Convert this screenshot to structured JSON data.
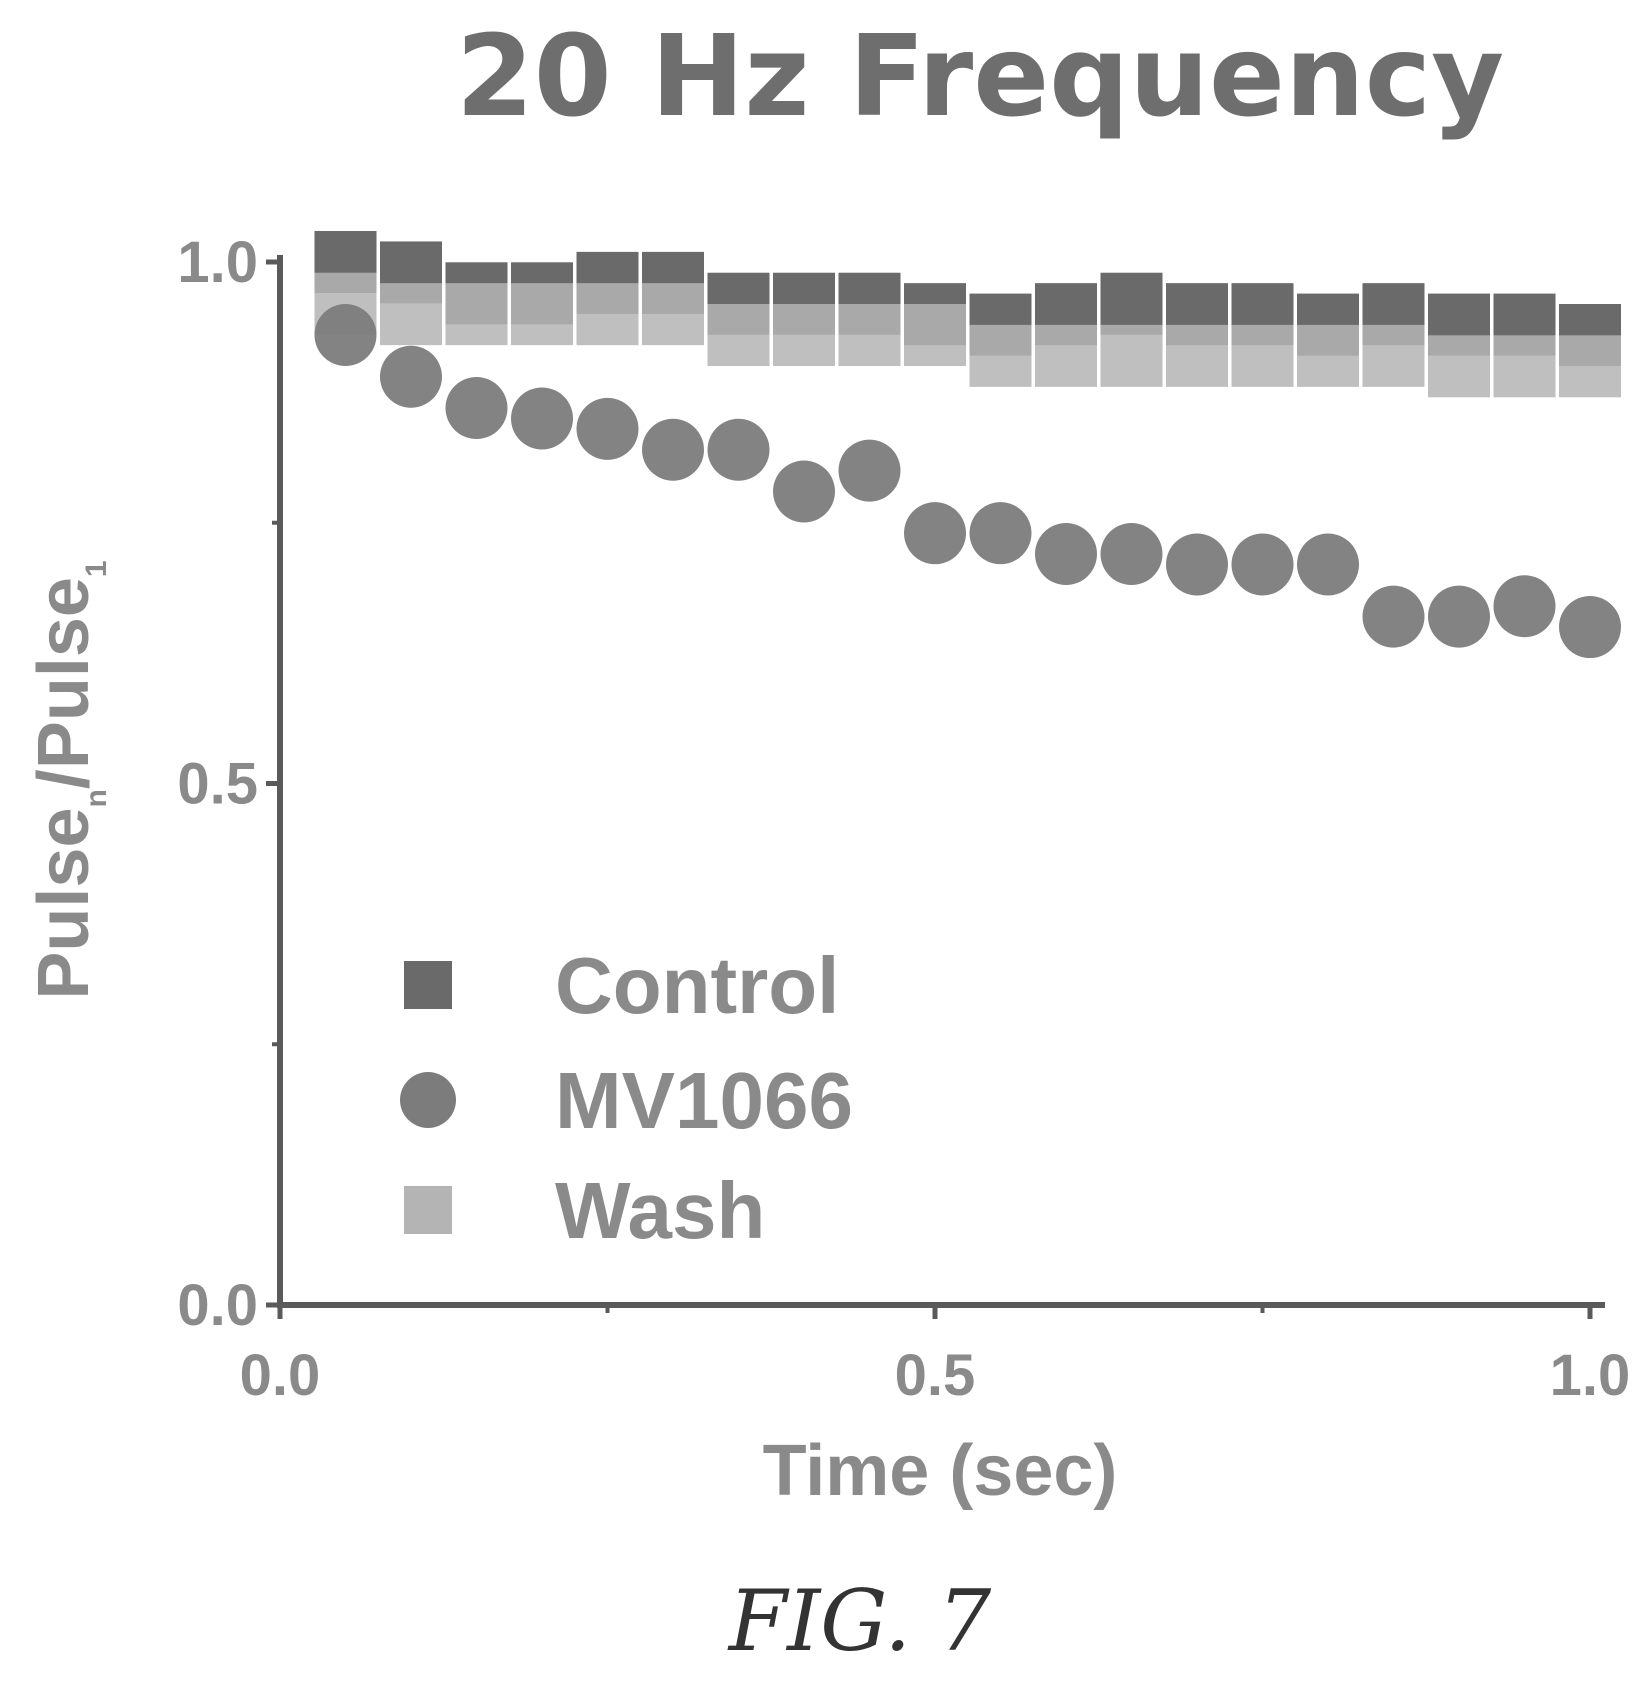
{
  "figure": {
    "caption": "FIG. 7"
  },
  "chart_data": {
    "type": "scatter",
    "title": "20 Hz Frequency",
    "xlabel": "Time (sec)",
    "ylabel_main": "Pulse",
    "ylabel_sub_n": "n",
    "ylabel_slash": "/Pulse",
    "ylabel_sub_1": "1",
    "xlim": [
      0.0,
      1.0
    ],
    "ylim": [
      0.0,
      1.0
    ],
    "x_ticks": [
      0.0,
      0.5,
      1.0
    ],
    "x_tick_labels": [
      "0.0",
      "0.5",
      "1.0"
    ],
    "y_ticks": [
      0.0,
      0.5,
      1.0
    ],
    "y_tick_labels": [
      "0.0",
      "0.5",
      "1.0"
    ],
    "legend_position": "lower-left",
    "series": [
      {
        "name": "Control",
        "marker": "square",
        "color": "#6a6a6a",
        "x": [
          0.05,
          0.1,
          0.15,
          0.2,
          0.25,
          0.3,
          0.35,
          0.4,
          0.45,
          0.5,
          0.55,
          0.6,
          0.65,
          0.7,
          0.75,
          0.8,
          0.85,
          0.9,
          0.95,
          1.0
        ],
        "y": [
          1.0,
          0.99,
          0.97,
          0.97,
          0.98,
          0.98,
          0.96,
          0.96,
          0.96,
          0.95,
          0.94,
          0.95,
          0.96,
          0.95,
          0.95,
          0.94,
          0.95,
          0.94,
          0.94,
          0.93
        ]
      },
      {
        "name": "MV1066",
        "marker": "circle",
        "color": "#7c7c7c",
        "x": [
          0.05,
          0.1,
          0.15,
          0.2,
          0.25,
          0.3,
          0.35,
          0.4,
          0.45,
          0.5,
          0.55,
          0.6,
          0.65,
          0.7,
          0.75,
          0.8,
          0.85,
          0.9,
          0.95,
          1.0
        ],
        "y": [
          0.93,
          0.89,
          0.86,
          0.85,
          0.84,
          0.82,
          0.82,
          0.78,
          0.8,
          0.74,
          0.74,
          0.72,
          0.72,
          0.71,
          0.71,
          0.71,
          0.66,
          0.66,
          0.67,
          0.65
        ]
      },
      {
        "name": "Wash",
        "marker": "square",
        "color": "#b4b4b4",
        "x": [
          0.05,
          0.1,
          0.15,
          0.2,
          0.25,
          0.3,
          0.35,
          0.4,
          0.45,
          0.5,
          0.55,
          0.6,
          0.65,
          0.7,
          0.75,
          0.8,
          0.85,
          0.9,
          0.95,
          1.0
        ],
        "y": [
          0.96,
          0.95,
          0.95,
          0.95,
          0.95,
          0.95,
          0.93,
          0.93,
          0.93,
          0.93,
          0.91,
          0.91,
          0.91,
          0.91,
          0.91,
          0.91,
          0.91,
          0.9,
          0.9,
          0.9
        ]
      }
    ]
  }
}
